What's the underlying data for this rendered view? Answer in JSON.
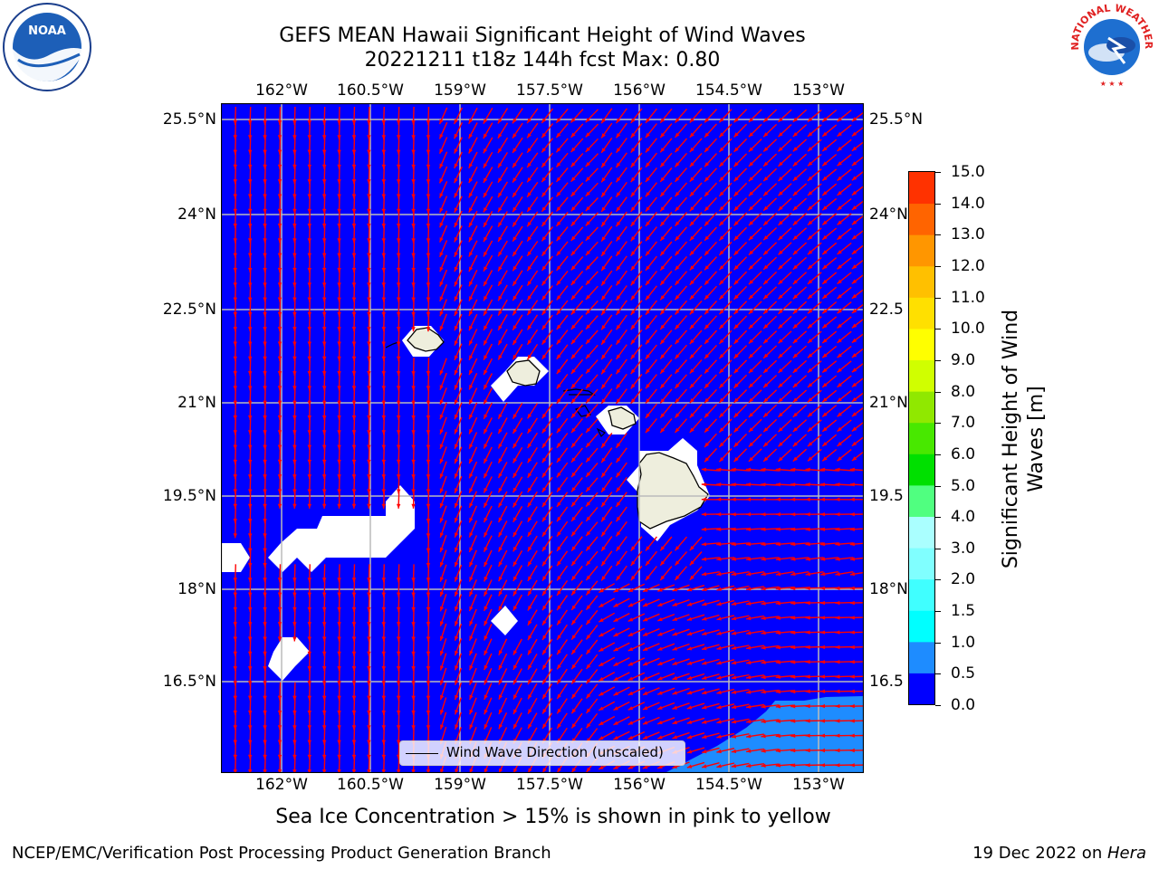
{
  "header": {
    "title_line1": "GEFS MEAN Hawaii Significant Height of Wind Waves",
    "title_line2": "20221211 t18z 144h fcst   Max: 0.80"
  },
  "logos": {
    "left": "noaa-logo",
    "left_text": "NOAA",
    "right": "national-weather-service-logo",
    "right_text": "NATIONAL WEATHER SERVICE"
  },
  "map": {
    "ocean_color": "#0000ff",
    "land_color": "#eeeedd",
    "masked_color": "#ffffff",
    "arrow_color": "#ff0000",
    "lon_ticks": [
      "162°W",
      "160.5°W",
      "159°W",
      "157.5°W",
      "156°W",
      "154.5°W",
      "153°W"
    ],
    "lat_ticks": [
      "25.5°N",
      "24°N",
      "22.5°N",
      "21°N",
      "19.5°N",
      "18°N",
      "16.5°N"
    ],
    "lat_ticks_right": [
      "25.5°N",
      "24°N",
      "22.5",
      "21°N",
      "19.5",
      "18°N",
      "16.5"
    ],
    "legend_label": "Wind Wave Direction (unscaled)"
  },
  "colorbar": {
    "label": "Significant Height of Wind Waves [m]",
    "label_line1": "Significant Height of Wind",
    "label_line2": "Waves [m]",
    "ticks": [
      "0.0",
      "0.5",
      "1.0",
      "1.5",
      "2.0",
      "3.0",
      "4.0",
      "5.0",
      "6.0",
      "7.0",
      "8.0",
      "9.0",
      "10.0",
      "11.0",
      "12.0",
      "13.0",
      "14.0",
      "15.0"
    ],
    "colors": [
      "#0000ff",
      "#1e8cff",
      "#00ffff",
      "#40ffff",
      "#80ffff",
      "#aaffff",
      "#50ff80",
      "#00e000",
      "#48e800",
      "#90e800",
      "#d0ff00",
      "#ffff00",
      "#ffe000",
      "#ffc000",
      "#ff9600",
      "#ff6400",
      "#ff3200",
      "#ff0000"
    ]
  },
  "chart_data": {
    "type": "heatmap",
    "title": "GEFS MEAN Hawaii Significant Height of Wind Waves",
    "subtitle": "20221211 t18z 144h fcst   Max: 0.80",
    "variable": "Significant Height of Wind Waves [m]",
    "max_value": 0.8,
    "colorbar_range": [
      0.0,
      15.0
    ],
    "lon_range_deg_w": [
      162.9,
      152.2
    ],
    "lat_range_deg_n": [
      15.3,
      25.8
    ],
    "notes": "Field mostly 0.0-0.5 m (blue); 0.5-1.0 m in the southeast corner."
  },
  "notes": {
    "ice": "Sea Ice Concentration > 15% is shown in pink to yellow"
  },
  "footer": {
    "left": "NCEP/EMC/Verification Post Processing Product Generation Branch",
    "right_date": "19 Dec 2022 on ",
    "right_host": "Hera"
  }
}
